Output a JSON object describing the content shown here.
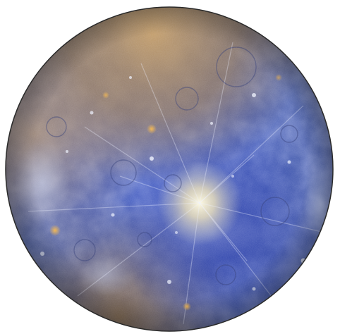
{
  "image": {
    "background_color": "#ffffff",
    "subject": "planet-mercury-enhanced-color",
    "palette": {
      "deep_blue": "#2c3f9c",
      "mid_blue": "#4a63c4",
      "light_blue": "#8fb0e8",
      "tan": "#b79a6a",
      "brown": "#7a5a36",
      "orange": "#e3a03a",
      "bright_ray": "#f6f1d6",
      "rim": "#2a2a2a"
    }
  }
}
